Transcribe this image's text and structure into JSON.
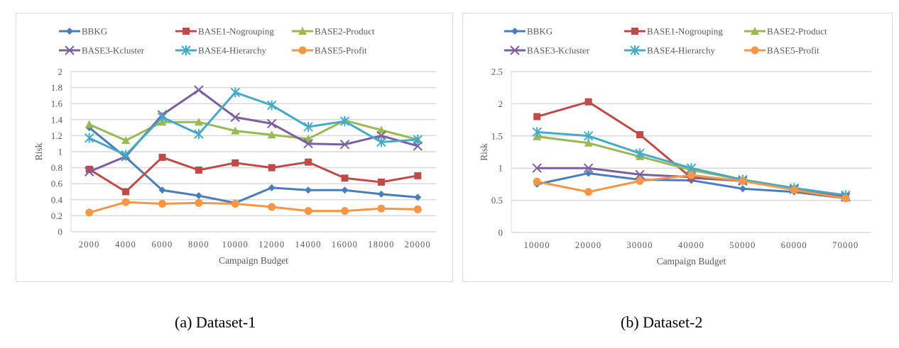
{
  "captions": {
    "a": "(a) Dataset-1",
    "b": "(b) Dataset-2"
  },
  "series_styles": [
    {
      "name": "BBKG",
      "color": "#4a7ebb",
      "marker": "diamond"
    },
    {
      "name": "BASE1-Nogrouping",
      "color": "#be4b48",
      "marker": "square"
    },
    {
      "name": "BASE2-Product",
      "color": "#98b954",
      "marker": "triangle"
    },
    {
      "name": "BASE3-Kcluster",
      "color": "#7d5fa0",
      "marker": "x"
    },
    {
      "name": "BASE4-Hierarchy",
      "color": "#46aac5",
      "marker": "star"
    },
    {
      "name": "BASE5-Profit",
      "color": "#f69646",
      "marker": "circle"
    }
  ],
  "chart_data": [
    {
      "type": "line",
      "title": "",
      "xlabel": "Campaign Budget",
      "ylabel": "Risk",
      "categories": [
        "2000",
        "4000",
        "6000",
        "8000",
        "10000",
        "12000",
        "14000",
        "16000",
        "18000",
        "20000"
      ],
      "ylim": [
        0,
        2
      ],
      "yticks": [
        "0",
        "0.2",
        "0.4",
        "0.6",
        "0.8",
        "1",
        "1.2",
        "1.4",
        "1.6",
        "1.8",
        "2"
      ],
      "grid": true,
      "legend": "top",
      "series": [
        {
          "name": "BBKG",
          "values": [
            1.3,
            0.93,
            0.52,
            0.45,
            0.36,
            0.55,
            0.52,
            0.52,
            0.47,
            0.43
          ]
        },
        {
          "name": "BASE1-Nogrouping",
          "values": [
            0.78,
            0.5,
            0.93,
            0.77,
            0.86,
            0.8,
            0.87,
            0.67,
            0.62,
            0.7
          ]
        },
        {
          "name": "BASE2-Product",
          "values": [
            1.34,
            1.14,
            1.37,
            1.37,
            1.26,
            1.21,
            1.16,
            1.39,
            1.27,
            1.15
          ]
        },
        {
          "name": "BASE3-Kcluster",
          "values": [
            0.75,
            0.94,
            1.46,
            1.77,
            1.43,
            1.35,
            1.1,
            1.09,
            1.2,
            1.07
          ]
        },
        {
          "name": "BASE4-Hierarchy",
          "values": [
            1.17,
            0.96,
            1.43,
            1.22,
            1.74,
            1.58,
            1.31,
            1.38,
            1.12,
            1.15
          ]
        },
        {
          "name": "BASE5-Profit",
          "values": [
            0.24,
            0.37,
            0.35,
            0.36,
            0.35,
            0.31,
            0.26,
            0.26,
            0.29,
            0.28
          ]
        }
      ]
    },
    {
      "type": "line",
      "title": "",
      "xlabel": "Campaign Budget",
      "ylabel": "Risk",
      "categories": [
        "10000",
        "20000",
        "30000",
        "40000",
        "50000",
        "60000",
        "70000"
      ],
      "ylim": [
        0,
        2.5
      ],
      "yticks": [
        "0",
        "0.5",
        "1",
        "1.5",
        "2",
        "2.5"
      ],
      "grid": true,
      "legend": "top",
      "series": [
        {
          "name": "BBKG",
          "values": [
            0.75,
            0.92,
            0.82,
            0.81,
            0.68,
            0.63,
            0.53
          ]
        },
        {
          "name": "BASE1-Nogrouping",
          "values": [
            1.8,
            2.03,
            1.52,
            0.85,
            0.8,
            0.67,
            0.55
          ]
        },
        {
          "name": "BASE2-Product",
          "values": [
            1.49,
            1.39,
            1.18,
            0.97,
            0.82,
            0.69,
            0.57
          ]
        },
        {
          "name": "BASE3-Kcluster",
          "values": [
            1.0,
            1.0,
            0.9,
            0.86,
            0.8,
            0.67,
            0.55
          ]
        },
        {
          "name": "BASE4-Hierarchy",
          "values": [
            1.56,
            1.5,
            1.23,
            1.0,
            0.82,
            0.69,
            0.58
          ]
        },
        {
          "name": "BASE5-Profit",
          "values": [
            0.79,
            0.63,
            0.8,
            0.89,
            0.8,
            0.66,
            0.53
          ]
        }
      ]
    }
  ]
}
